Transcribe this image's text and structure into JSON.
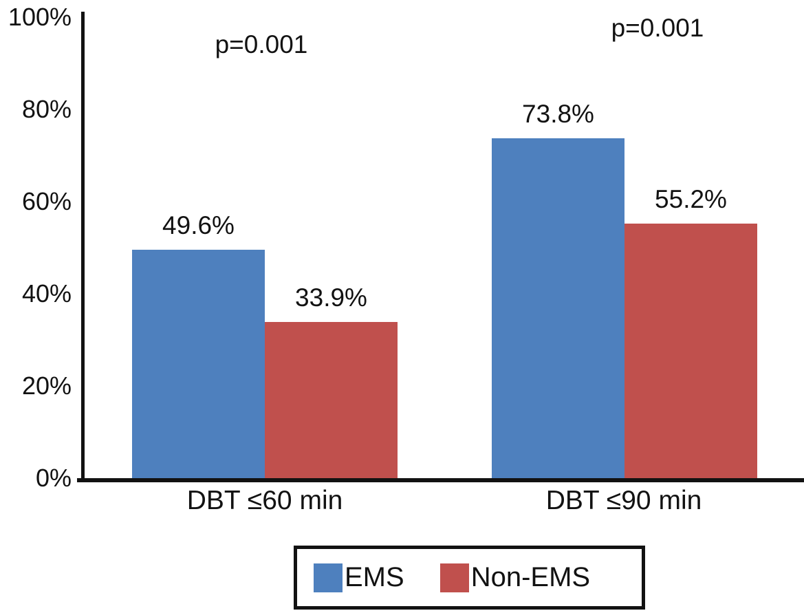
{
  "chart_data": {
    "type": "bar",
    "categories": [
      "DBT ≤60 min",
      "DBT ≤90 min"
    ],
    "series": [
      {
        "name": "EMS",
        "color": "#4E80BE",
        "values": [
          49.6,
          73.8
        ]
      },
      {
        "name": "Non-EMS",
        "color": "#C0504D",
        "values": [
          33.9,
          55.2
        ]
      }
    ],
    "value_labels": [
      [
        "49.6%",
        "33.9%"
      ],
      [
        "73.8%",
        "55.2%"
      ]
    ],
    "annotations": [
      {
        "text": "p=0.001",
        "group_index": 0
      },
      {
        "text": "p=0.001",
        "group_index": 1
      }
    ],
    "yticks": [
      "100%",
      "80%",
      "60%",
      "40%",
      "20%",
      "0%"
    ],
    "ylim": [
      0,
      100
    ],
    "grid": false,
    "legend_position": "bottom",
    "legend_border": true,
    "title": "",
    "xlabel": "",
    "ylabel": "",
    "axis_color": "#121212",
    "background": "#FFFFFF"
  }
}
